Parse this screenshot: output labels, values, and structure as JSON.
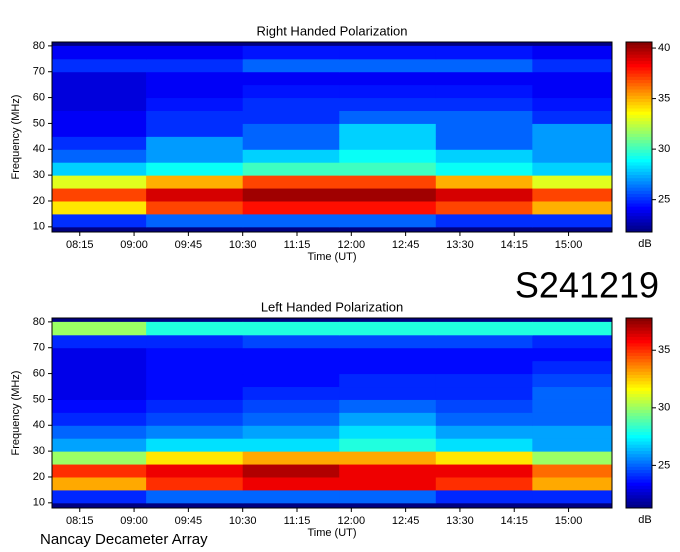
{
  "label": "S241219",
  "footer": "Nancay Decameter Array",
  "chart_data": [
    {
      "type": "heatmap",
      "title": "Right Handed Polarization",
      "xlabel": "Time (UT)",
      "ylabel": "Frequency (MHz)",
      "colorbar_label": "dB",
      "colormap": "jet",
      "xlim": [
        472,
        936
      ],
      "xticks": [
        {
          "value": 495,
          "label": "08:15"
        },
        {
          "value": 540,
          "label": "09:00"
        },
        {
          "value": 585,
          "label": "09:45"
        },
        {
          "value": 630,
          "label": "10:30"
        },
        {
          "value": 675,
          "label": "11:15"
        },
        {
          "value": 720,
          "label": "12:00"
        },
        {
          "value": 765,
          "label": "12:45"
        },
        {
          "value": 810,
          "label": "13:30"
        },
        {
          "value": 855,
          "label": "14:15"
        },
        {
          "value": 900,
          "label": "15:00"
        }
      ],
      "ylim": [
        8,
        81.5
      ],
      "yticks": [
        10,
        20,
        30,
        40,
        50,
        60,
        70,
        80
      ],
      "x_bins": [
        472,
        550,
        630,
        710,
        790,
        870,
        936
      ],
      "y_bins": [
        10,
        15,
        20,
        25,
        30,
        35,
        40,
        45,
        50,
        55,
        60,
        65,
        70,
        75,
        80
      ],
      "z": [
        [
          25,
          26,
          26,
          26,
          25,
          25
        ],
        [
          34,
          37,
          38,
          38,
          37,
          35
        ],
        [
          37,
          39,
          40,
          40,
          39,
          37
        ],
        [
          33,
          35,
          37,
          37,
          35,
          33
        ],
        [
          28,
          29,
          30,
          30,
          29,
          28
        ],
        [
          26,
          27,
          28,
          29,
          28,
          27
        ],
        [
          25,
          27,
          26,
          28,
          26,
          27
        ],
        [
          24,
          25,
          26,
          28,
          26,
          27
        ],
        [
          24,
          25,
          25,
          26,
          26,
          25
        ],
        [
          23.5,
          24.5,
          25,
          25,
          25,
          24.5
        ],
        [
          23.5,
          24,
          24.5,
          24.5,
          24.5,
          24
        ],
        [
          23.5,
          24,
          24,
          24,
          24,
          24
        ],
        [
          25,
          25,
          26,
          26,
          26,
          25
        ],
        [
          24,
          24,
          24.5,
          24.5,
          24.5,
          24
        ]
      ],
      "clim": [
        21.8,
        40.6
      ],
      "cticks": [
        25,
        30,
        35,
        40
      ]
    },
    {
      "type": "heatmap",
      "title": "Left Handed Polarization",
      "xlabel": "Time (UT)",
      "ylabel": "Frequency (MHz)",
      "colorbar_label": "dB",
      "colormap": "jet",
      "xlim": [
        472,
        936
      ],
      "xticks": [
        {
          "value": 495,
          "label": "08:15"
        },
        {
          "value": 540,
          "label": "09:00"
        },
        {
          "value": 585,
          "label": "09:45"
        },
        {
          "value": 630,
          "label": "10:30"
        },
        {
          "value": 675,
          "label": "11:15"
        },
        {
          "value": 720,
          "label": "12:00"
        },
        {
          "value": 765,
          "label": "12:45"
        },
        {
          "value": 810,
          "label": "13:30"
        },
        {
          "value": 855,
          "label": "14:15"
        },
        {
          "value": 900,
          "label": "15:00"
        }
      ],
      "ylim": [
        8,
        81.5
      ],
      "yticks": [
        10,
        20,
        30,
        40,
        50,
        60,
        70,
        80
      ],
      "x_bins": [
        472,
        550,
        630,
        710,
        790,
        870,
        936
      ],
      "y_bins": [
        10,
        15,
        20,
        25,
        30,
        35,
        40,
        45,
        50,
        55,
        60,
        65,
        70,
        75,
        80
      ],
      "z": [
        [
          24,
          25,
          25,
          25,
          24,
          24
        ],
        [
          33,
          35,
          36,
          36,
          35,
          33
        ],
        [
          35,
          36,
          37,
          36,
          36,
          34
        ],
        [
          30,
          32,
          33,
          33,
          32,
          30
        ],
        [
          26,
          27,
          27,
          28,
          27,
          26
        ],
        [
          25,
          25.5,
          26,
          27,
          26,
          26
        ],
        [
          24,
          24.5,
          25,
          26,
          25,
          25
        ],
        [
          23.5,
          24,
          24.5,
          25,
          24.5,
          25
        ],
        [
          23,
          23.5,
          24,
          24,
          24,
          25
        ],
        [
          23,
          23.5,
          23.5,
          24,
          24,
          24.5
        ],
        [
          23,
          23.5,
          23.5,
          23.5,
          23.5,
          24
        ],
        [
          23,
          23.5,
          23.5,
          23.5,
          23.5,
          23.5
        ],
        [
          24,
          24,
          24.5,
          24.5,
          24.5,
          24
        ],
        [
          30,
          28,
          28,
          28,
          28,
          28
        ]
      ],
      "clim": [
        21.3,
        37.8
      ],
      "cticks": [
        25,
        30,
        35
      ]
    }
  ]
}
